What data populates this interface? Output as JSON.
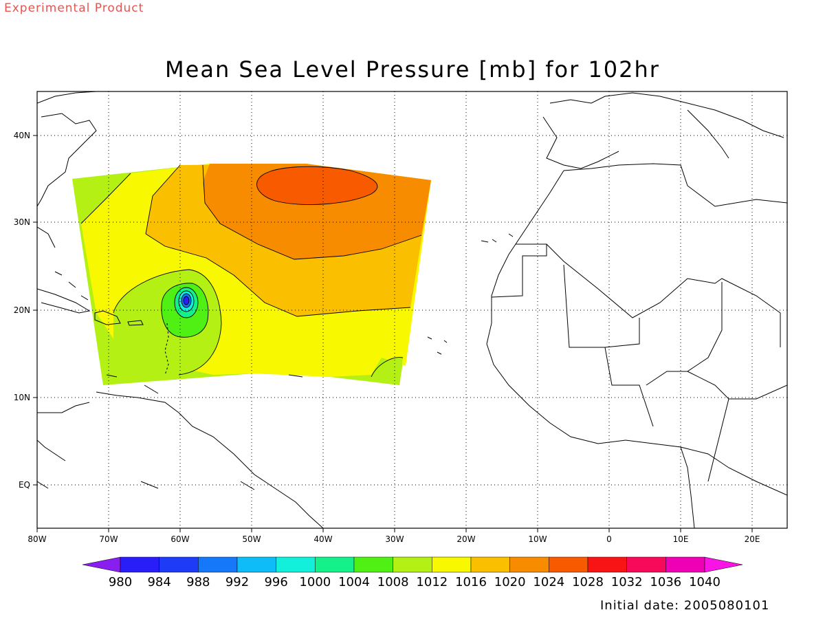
{
  "header": {
    "product_label": "Experimental Product"
  },
  "title": "Mean Sea Level Pressure [mb] for 102hr",
  "map": {
    "lon_range": [
      -80,
      25
    ],
    "lat_range": [
      -5,
      45
    ],
    "lon_ticks": [
      "80W",
      "70W",
      "60W",
      "50W",
      "40W",
      "30W",
      "20W",
      "10W",
      "0",
      "10E",
      "20E"
    ],
    "lat_ticks": [
      "EQ",
      "10N",
      "20N",
      "30N",
      "40N"
    ],
    "grid": "dotted"
  },
  "chart_data": {
    "type": "heatmap",
    "variable": "Mean Sea Level Pressure",
    "units": "mb",
    "forecast_hour": "102hr",
    "pressure_regions_mb": [
      {
        "range": "1028-1032",
        "center": "33N 42W"
      },
      {
        "range": "1024-1028",
        "region": "northeast of domain"
      },
      {
        "range": "1020-1024",
        "region": "central north"
      },
      {
        "range": "1016-1020",
        "region": "central"
      },
      {
        "range": "1012-1016",
        "region": "southern and western"
      },
      {
        "range": "1008-1012",
        "region": "western edge and southeast corner"
      },
      {
        "range": "1004-1008",
        "region": "near low"
      },
      {
        "range": "<1000",
        "center": "21N 59W",
        "note": "tropical low"
      }
    ]
  },
  "colorbar": {
    "levels": [
      "980",
      "984",
      "988",
      "992",
      "996",
      "1000",
      "1004",
      "1008",
      "1012",
      "1016",
      "1020",
      "1024",
      "1028",
      "1032",
      "1036",
      "1040"
    ],
    "colors": [
      "#8a1ef0",
      "#2a1ef8",
      "#1e3cf8",
      "#1478f8",
      "#0ebcf8",
      "#12f0dc",
      "#14f08a",
      "#50f014",
      "#b4f014",
      "#f8f800",
      "#fac000",
      "#f88c00",
      "#f85a00",
      "#f81414",
      "#f80a5a",
      "#f000b4",
      "#f814e4"
    ]
  },
  "footer": {
    "initial_date": "Initial date: 2005080101"
  }
}
